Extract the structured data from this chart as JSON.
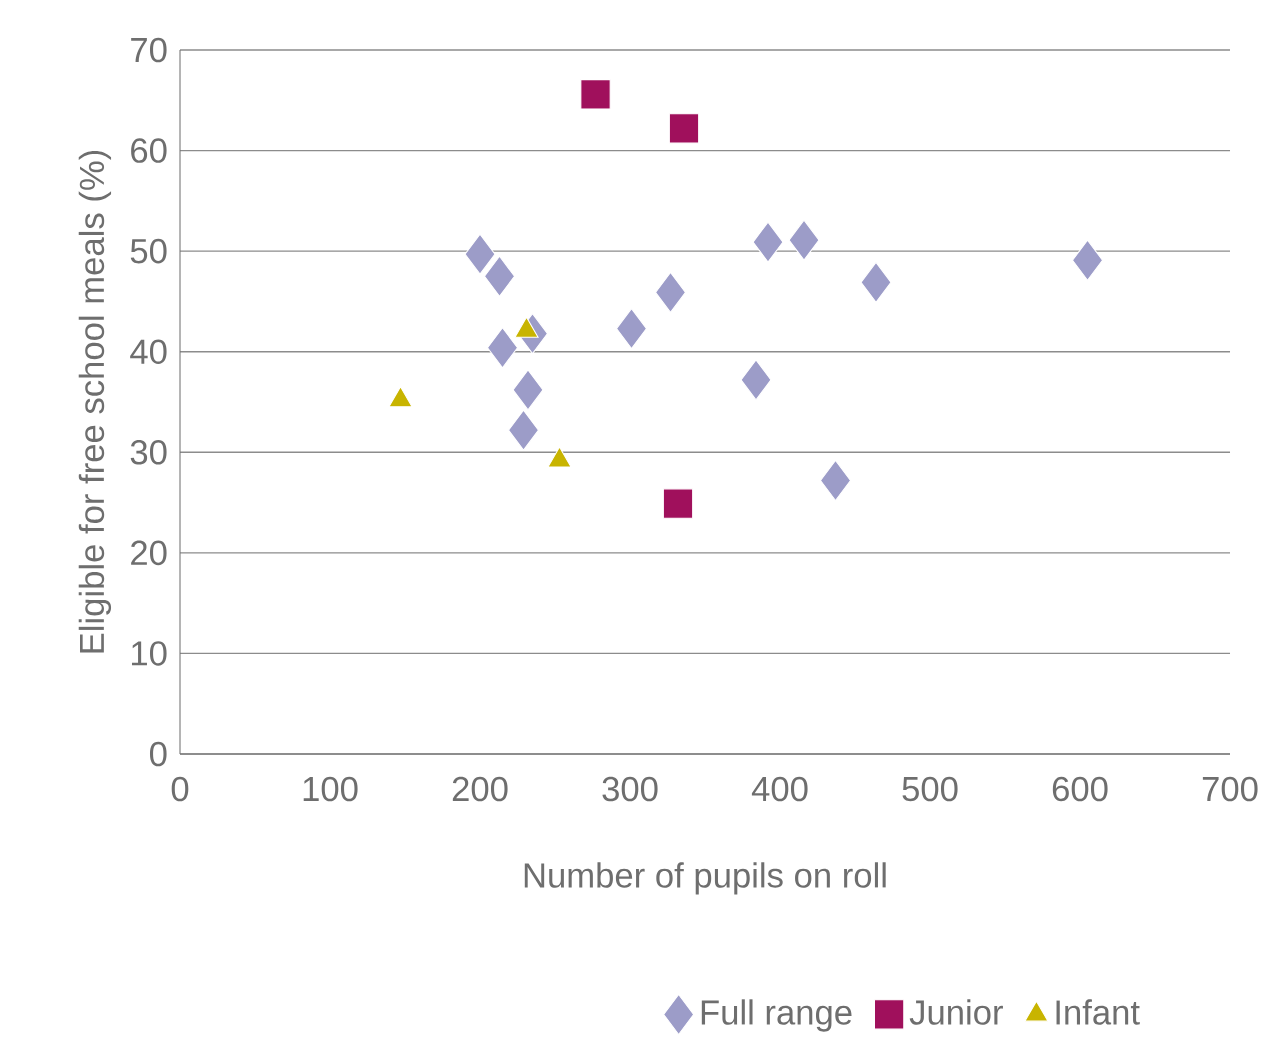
{
  "chart_data": {
    "type": "scatter",
    "xlabel": "Number of pupils on roll",
    "ylabel": "Eligible for free school meals (%)",
    "xlim": [
      0,
      700
    ],
    "ylim": [
      0,
      70
    ],
    "xticks": [
      0,
      100,
      200,
      300,
      400,
      500,
      600,
      700
    ],
    "yticks": [
      0,
      10,
      20,
      30,
      40,
      50,
      60,
      70
    ],
    "grid": "y",
    "legend": "bottom",
    "series": [
      {
        "name": "Full range",
        "color": "#9c9cc8",
        "marker": "diamond",
        "x": [
          200,
          213,
          215,
          235,
          232,
          229,
          301,
          327,
          384,
          392,
          416,
          464,
          437,
          605
        ],
        "values": [
          49.7,
          47.5,
          40.4,
          41.8,
          36.2,
          32.2,
          42.3,
          45.9,
          37.2,
          50.9,
          51.1,
          46.9,
          27.2,
          49.1
        ]
      },
      {
        "name": "Junior",
        "color": "#a0105c",
        "marker": "square",
        "x": [
          277,
          336,
          332
        ],
        "values": [
          65.6,
          62.2,
          24.9
        ]
      },
      {
        "name": "Infant",
        "color": "#c8b400",
        "marker": "triangle",
        "x": [
          147,
          231,
          253
        ],
        "values": [
          35.2,
          42.1,
          29.2
        ]
      }
    ]
  }
}
